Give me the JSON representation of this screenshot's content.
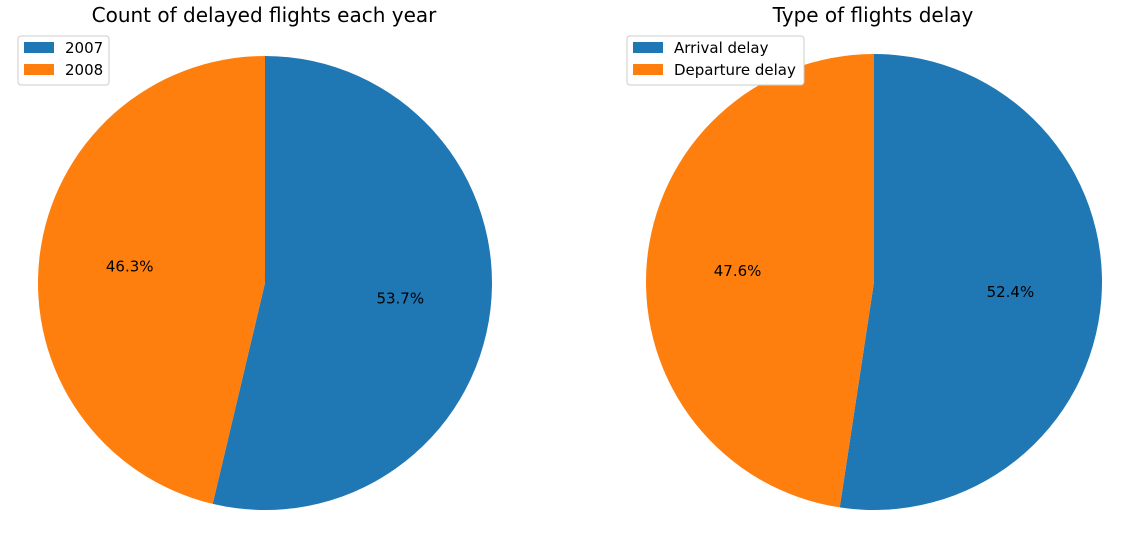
{
  "chart_data": [
    {
      "type": "pie",
      "title": "Count of delayed flights each year",
      "categories": [
        "2007",
        "2008"
      ],
      "values": [
        53.7,
        46.3
      ],
      "value_labels": [
        "53.7%",
        "46.3%"
      ],
      "colors": [
        "#1f77b4",
        "#ff7f0e"
      ],
      "start_angle_deg": 90,
      "direction": "clockwise",
      "legend": "top-left"
    },
    {
      "type": "pie",
      "title": "Type of flights delay",
      "categories": [
        "Arrival delay",
        "Departure delay"
      ],
      "values": [
        52.4,
        47.6
      ],
      "value_labels": [
        "52.4%",
        "47.6%"
      ],
      "colors": [
        "#1f77b4",
        "#ff7f0e"
      ],
      "start_angle_deg": 90,
      "direction": "clockwise",
      "legend": "top-left"
    }
  ]
}
